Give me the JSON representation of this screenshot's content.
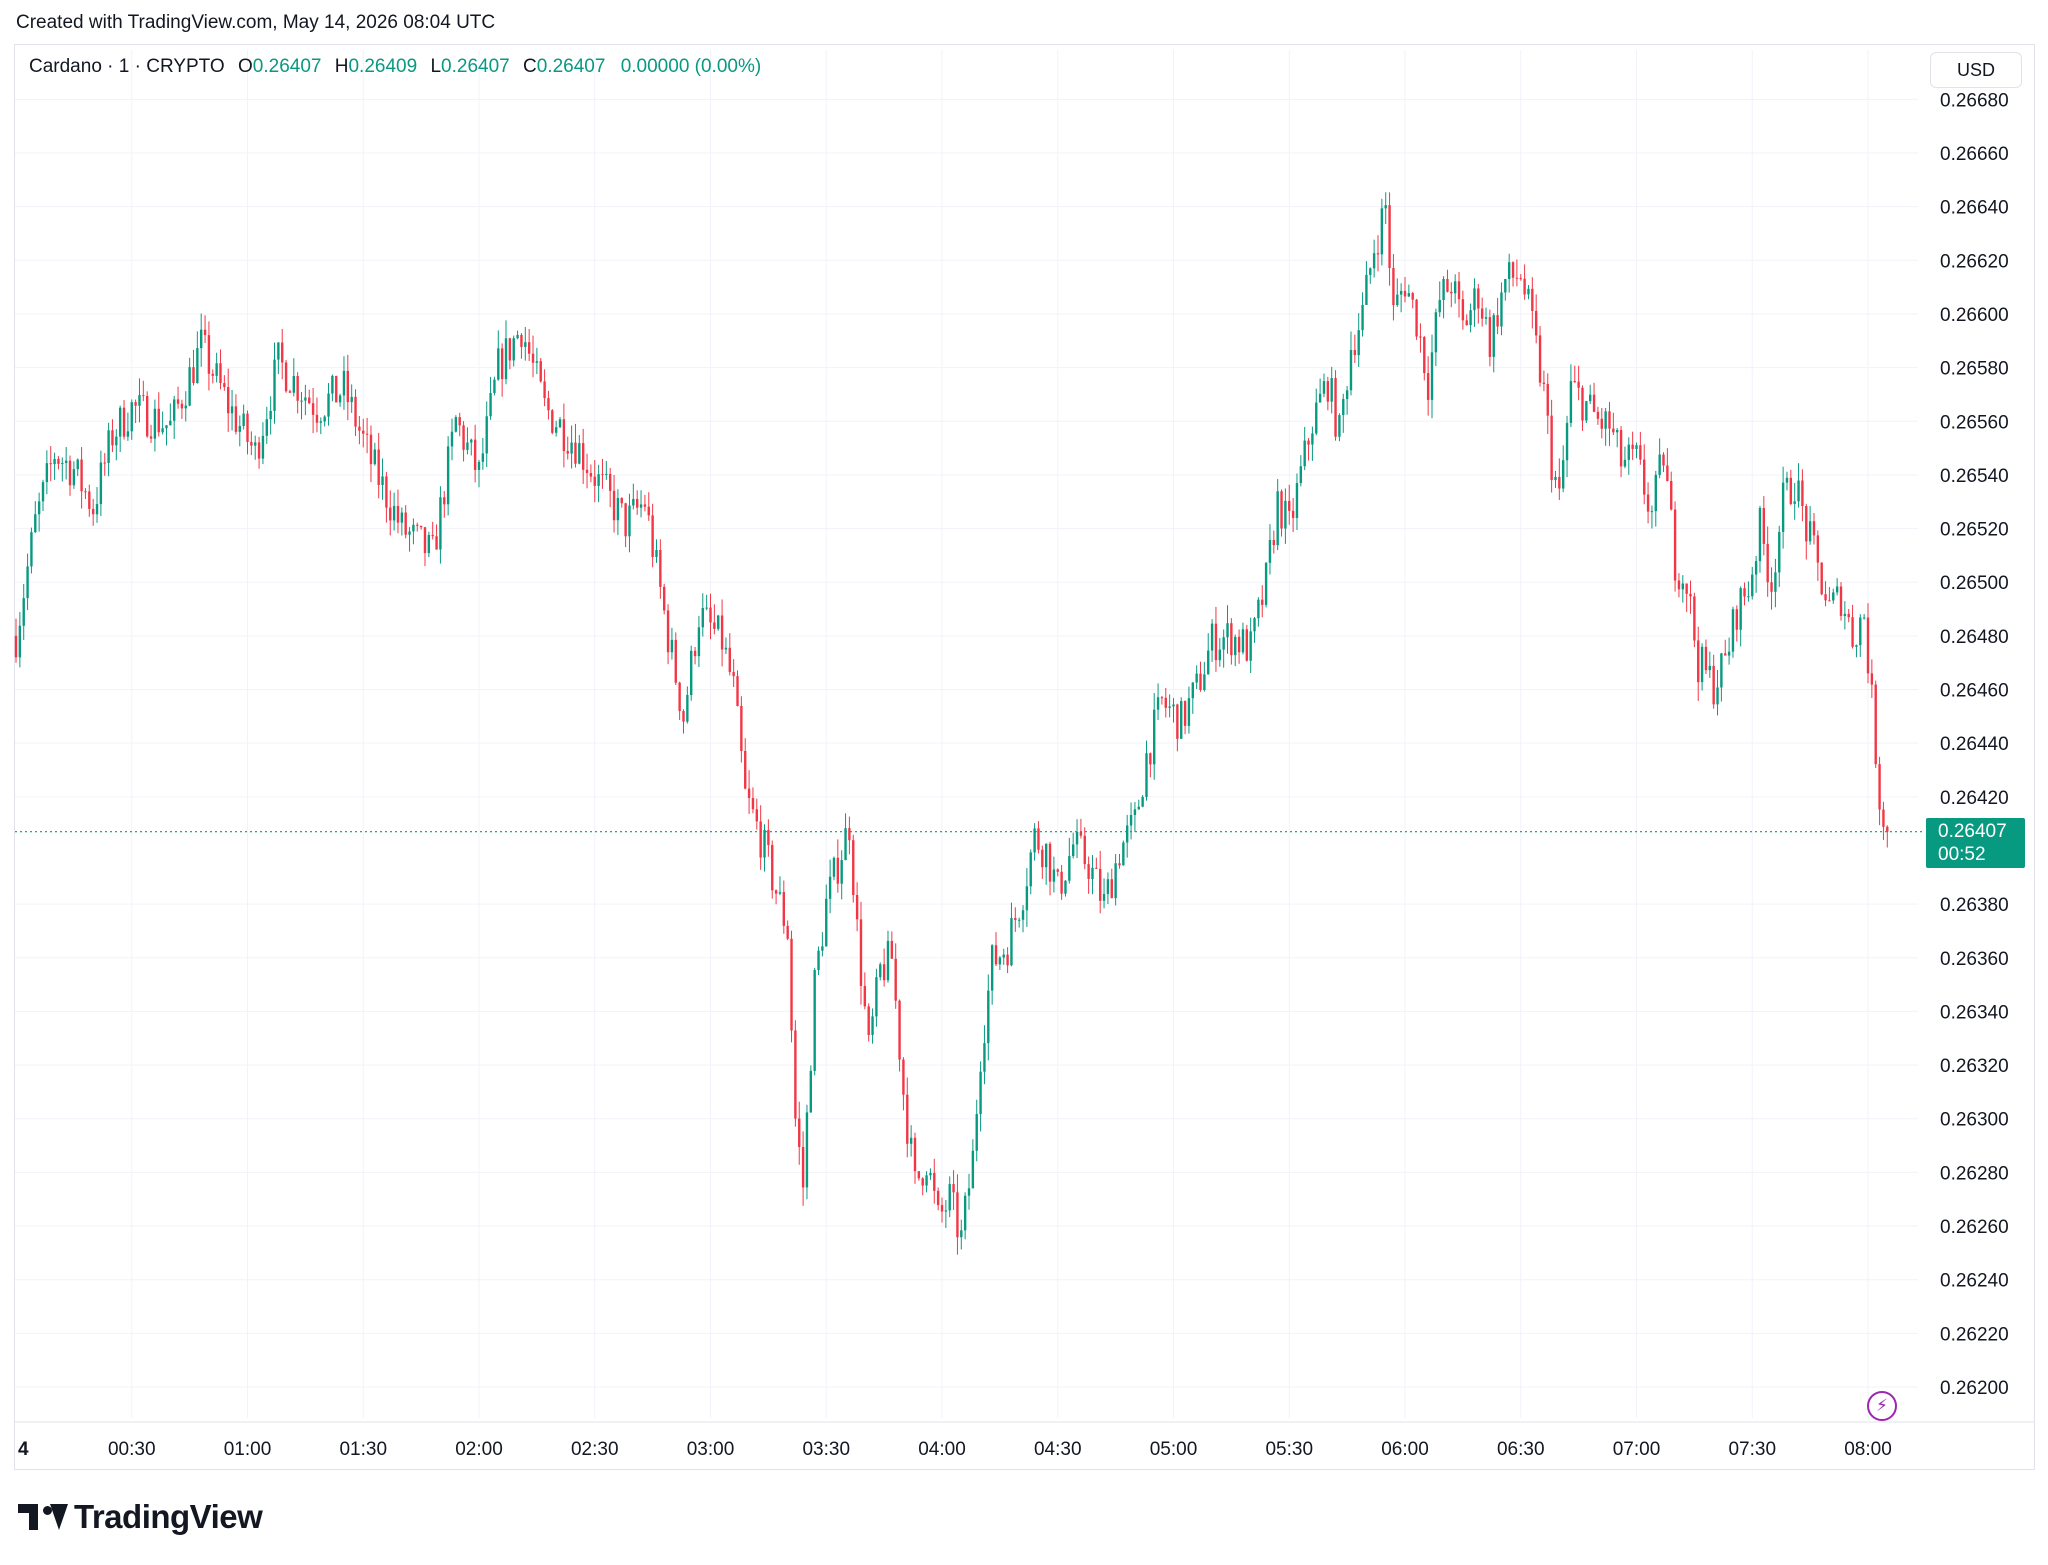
{
  "caption": "Created with TradingView.com, May 14, 2026 08:04 UTC",
  "header": {
    "symbol": "Cardano · 1 · CRYPTO",
    "open_label": "O",
    "open": "0.26407",
    "high_label": "H",
    "high": "0.26409",
    "low_label": "L",
    "low": "0.26407",
    "close_label": "C",
    "close": "0.26407",
    "change": "0.00000 (0.00%)"
  },
  "currency": "USD",
  "last_price": {
    "price": "0.26407",
    "countdown": "00:52"
  },
  "brand": "TradingView",
  "colors": {
    "up": "#089981",
    "down": "#f23645",
    "grid": "#f0f3fa",
    "text": "#131722"
  },
  "icons": [
    "bolt-icon",
    "tradingview-logo-icon"
  ],
  "chart_data": {
    "type": "candlestick",
    "interval_minutes": 1,
    "ylim": [
      0.2619,
      0.2669
    ],
    "y_ticks": [
      "0.26680",
      "0.26660",
      "0.26640",
      "0.26620",
      "0.26600",
      "0.26580",
      "0.26560",
      "0.26540",
      "0.26520",
      "0.26500",
      "0.26480",
      "0.26460",
      "0.26440",
      "0.26420",
      "0.26380",
      "0.26360",
      "0.26340",
      "0.26320",
      "0.26300",
      "0.26280",
      "0.26260",
      "0.26240",
      "0.26220",
      "0.26200"
    ],
    "x_ticks": [
      {
        "label": "4",
        "minute": 0
      },
      {
        "label": "00:30",
        "minute": 30
      },
      {
        "label": "01:00",
        "minute": 60
      },
      {
        "label": "01:30",
        "minute": 90
      },
      {
        "label": "02:00",
        "minute": 120
      },
      {
        "label": "02:30",
        "minute": 150
      },
      {
        "label": "03:00",
        "minute": 180
      },
      {
        "label": "03:30",
        "minute": 210
      },
      {
        "label": "04:00",
        "minute": 240
      },
      {
        "label": "04:30",
        "minute": 270
      },
      {
        "label": "05:00",
        "minute": 300
      },
      {
        "label": "05:30",
        "minute": 330
      },
      {
        "label": "06:00",
        "minute": 360
      },
      {
        "label": "06:30",
        "minute": 390
      },
      {
        "label": "07:00",
        "minute": 420
      },
      {
        "label": "07:30",
        "minute": 450
      },
      {
        "label": "08:00",
        "minute": 480
      }
    ],
    "close_path": [
      {
        "minute": 0,
        "close": 0.2648
      },
      {
        "minute": 5,
        "close": 0.26522
      },
      {
        "minute": 10,
        "close": 0.26548
      },
      {
        "minute": 15,
        "close": 0.26542
      },
      {
        "minute": 20,
        "close": 0.26528
      },
      {
        "minute": 25,
        "close": 0.26555
      },
      {
        "minute": 30,
        "close": 0.26565
      },
      {
        "minute": 40,
        "close": 0.26558
      },
      {
        "minute": 48,
        "close": 0.26588
      },
      {
        "minute": 55,
        "close": 0.26566
      },
      {
        "minute": 62,
        "close": 0.26548
      },
      {
        "minute": 68,
        "close": 0.26582
      },
      {
        "minute": 78,
        "close": 0.26565
      },
      {
        "minute": 85,
        "close": 0.26572
      },
      {
        "minute": 92,
        "close": 0.26545
      },
      {
        "minute": 100,
        "close": 0.2652
      },
      {
        "minute": 108,
        "close": 0.2651
      },
      {
        "minute": 114,
        "close": 0.2656
      },
      {
        "minute": 120,
        "close": 0.2654
      },
      {
        "minute": 125,
        "close": 0.2658
      },
      {
        "minute": 131,
        "close": 0.26595
      },
      {
        "minute": 137,
        "close": 0.26565
      },
      {
        "minute": 145,
        "close": 0.26552
      },
      {
        "minute": 152,
        "close": 0.26535
      },
      {
        "minute": 158,
        "close": 0.26522
      },
      {
        "minute": 163,
        "close": 0.2653
      },
      {
        "minute": 169,
        "close": 0.2648
      },
      {
        "minute": 173,
        "close": 0.2645
      },
      {
        "minute": 177,
        "close": 0.26488
      },
      {
        "minute": 183,
        "close": 0.26478
      },
      {
        "minute": 186,
        "close": 0.2646
      },
      {
        "minute": 189,
        "close": 0.2642
      },
      {
        "minute": 193,
        "close": 0.26405
      },
      {
        "minute": 197,
        "close": 0.26385
      },
      {
        "minute": 200,
        "close": 0.2637
      },
      {
        "minute": 202,
        "close": 0.263
      },
      {
        "minute": 204,
        "close": 0.26275
      },
      {
        "minute": 207,
        "close": 0.2635
      },
      {
        "minute": 210,
        "close": 0.2638
      },
      {
        "minute": 213,
        "close": 0.26395
      },
      {
        "minute": 216,
        "close": 0.2641
      },
      {
        "minute": 218,
        "close": 0.2637
      },
      {
        "minute": 221,
        "close": 0.26325
      },
      {
        "minute": 224,
        "close": 0.26355
      },
      {
        "minute": 227,
        "close": 0.2636
      },
      {
        "minute": 230,
        "close": 0.2631
      },
      {
        "minute": 233,
        "close": 0.26275
      },
      {
        "minute": 236,
        "close": 0.26285
      },
      {
        "minute": 239,
        "close": 0.26262
      },
      {
        "minute": 242,
        "close": 0.2627
      },
      {
        "minute": 245,
        "close": 0.26255
      },
      {
        "minute": 248,
        "close": 0.26285
      },
      {
        "minute": 250,
        "close": 0.26325
      },
      {
        "minute": 253,
        "close": 0.26358
      },
      {
        "minute": 257,
        "close": 0.26365
      },
      {
        "minute": 261,
        "close": 0.26385
      },
      {
        "minute": 264,
        "close": 0.26405
      },
      {
        "minute": 267,
        "close": 0.264
      },
      {
        "minute": 270,
        "close": 0.26385
      },
      {
        "minute": 274,
        "close": 0.26402
      },
      {
        "minute": 278,
        "close": 0.26395
      },
      {
        "minute": 282,
        "close": 0.2638
      },
      {
        "minute": 286,
        "close": 0.264
      },
      {
        "minute": 290,
        "close": 0.2641
      },
      {
        "minute": 293,
        "close": 0.26435
      },
      {
        "minute": 297,
        "close": 0.26455
      },
      {
        "minute": 302,
        "close": 0.26448
      },
      {
        "minute": 306,
        "close": 0.2646
      },
      {
        "minute": 310,
        "close": 0.26478
      },
      {
        "minute": 315,
        "close": 0.2648
      },
      {
        "minute": 320,
        "close": 0.26475
      },
      {
        "minute": 324,
        "close": 0.265
      },
      {
        "minute": 327,
        "close": 0.2653
      },
      {
        "minute": 330,
        "close": 0.2652
      },
      {
        "minute": 333,
        "close": 0.2654
      },
      {
        "minute": 336,
        "close": 0.2656
      },
      {
        "minute": 340,
        "close": 0.26575
      },
      {
        "minute": 343,
        "close": 0.26555
      },
      {
        "minute": 346,
        "close": 0.26588
      },
      {
        "minute": 349,
        "close": 0.266
      },
      {
        "minute": 352,
        "close": 0.26625
      },
      {
        "minute": 355,
        "close": 0.2664
      },
      {
        "minute": 357,
        "close": 0.266
      },
      {
        "minute": 360,
        "close": 0.26612
      },
      {
        "minute": 363,
        "close": 0.26598
      },
      {
        "minute": 366,
        "close": 0.26575
      },
      {
        "minute": 369,
        "close": 0.26605
      },
      {
        "minute": 372,
        "close": 0.26612
      },
      {
        "minute": 375,
        "close": 0.26595
      },
      {
        "minute": 379,
        "close": 0.26608
      },
      {
        "minute": 382,
        "close": 0.2659
      },
      {
        "minute": 386,
        "close": 0.26612
      },
      {
        "minute": 390,
        "close": 0.26615
      },
      {
        "minute": 393,
        "close": 0.26595
      },
      {
        "minute": 396,
        "close": 0.2657
      },
      {
        "minute": 398,
        "close": 0.26545
      },
      {
        "minute": 400,
        "close": 0.2653
      },
      {
        "minute": 403,
        "close": 0.26572
      },
      {
        "minute": 406,
        "close": 0.26568
      },
      {
        "minute": 410,
        "close": 0.2656
      },
      {
        "minute": 413,
        "close": 0.26558
      },
      {
        "minute": 416,
        "close": 0.26545
      },
      {
        "minute": 420,
        "close": 0.26545
      },
      {
        "minute": 424,
        "close": 0.26525
      },
      {
        "minute": 427,
        "close": 0.26548
      },
      {
        "minute": 430,
        "close": 0.26508
      },
      {
        "minute": 433,
        "close": 0.265
      },
      {
        "minute": 436,
        "close": 0.2647
      },
      {
        "minute": 440,
        "close": 0.26462
      },
      {
        "minute": 443,
        "close": 0.2647
      },
      {
        "minute": 446,
        "close": 0.2649
      },
      {
        "minute": 449,
        "close": 0.26498
      },
      {
        "minute": 452,
        "close": 0.2652
      },
      {
        "minute": 455,
        "close": 0.265
      },
      {
        "minute": 458,
        "close": 0.2653
      },
      {
        "minute": 461,
        "close": 0.26538
      },
      {
        "minute": 464,
        "close": 0.2652
      },
      {
        "minute": 467,
        "close": 0.26505
      },
      {
        "minute": 470,
        "close": 0.2649
      },
      {
        "minute": 473,
        "close": 0.26495
      },
      {
        "minute": 476,
        "close": 0.2648
      },
      {
        "minute": 479,
        "close": 0.26488
      },
      {
        "minute": 481,
        "close": 0.26455
      },
      {
        "minute": 483,
        "close": 0.2642
      },
      {
        "minute": 485,
        "close": 0.26407
      }
    ]
  }
}
